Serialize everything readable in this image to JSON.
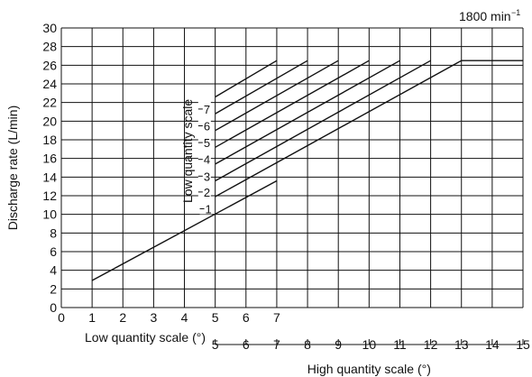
{
  "chart_data": {
    "type": "line",
    "speed_label": "1800 min",
    "speed_exponent": "−1",
    "ylabel": "Discharge rate (L/min)",
    "ylim": [
      0,
      30
    ],
    "yticks": [
      "0",
      "2",
      "4",
      "6",
      "8",
      "10",
      "12",
      "14",
      "16",
      "18",
      "20",
      "22",
      "24",
      "26",
      "28",
      "30"
    ],
    "xlim": [
      0,
      15
    ],
    "low_axis_label": "Low quantity scale (°)",
    "low_axis_ticks": [
      "0",
      "1",
      "2",
      "3",
      "4",
      "5",
      "6",
      "7"
    ],
    "high_axis_label": "High quantity scale (°)",
    "high_axis_ticks": [
      "5",
      "6",
      "7",
      "8",
      "9",
      "10",
      "11",
      "12",
      "13",
      "14",
      "15"
    ],
    "inner_axis_label": "Low quantity scale",
    "grid": true,
    "series": [
      {
        "name": "1",
        "points": [
          [
            1,
            2.9
          ],
          [
            7,
            13.6
          ]
        ]
      },
      {
        "name": "2",
        "points": [
          [
            5,
            11.9
          ],
          [
            13,
            26.5
          ],
          [
            15,
            26.5
          ]
        ]
      },
      {
        "name": "3",
        "points": [
          [
            5,
            13.6
          ],
          [
            12,
            26.5
          ]
        ]
      },
      {
        "name": "4",
        "points": [
          [
            5,
            15.4
          ],
          [
            11,
            26.5
          ]
        ]
      },
      {
        "name": "5",
        "points": [
          [
            5,
            17.2
          ],
          [
            10,
            26.5
          ]
        ]
      },
      {
        "name": "6",
        "points": [
          [
            5,
            19.0
          ],
          [
            9,
            26.5
          ]
        ]
      },
      {
        "name": "7",
        "points": [
          [
            5,
            20.8
          ],
          [
            8,
            26.5
          ]
        ]
      },
      {
        "name": "",
        "points": [
          [
            5,
            22.6
          ],
          [
            7,
            26.5
          ]
        ]
      }
    ],
    "series_labels": [
      {
        "text": "1",
        "x": 4.85,
        "y": 10.6
      },
      {
        "text": "2",
        "x": 4.8,
        "y": 12.4
      },
      {
        "text": "3",
        "x": 4.8,
        "y": 14.1
      },
      {
        "text": "4",
        "x": 4.8,
        "y": 15.9
      },
      {
        "text": "5",
        "x": 4.8,
        "y": 17.7
      },
      {
        "text": "6",
        "x": 4.8,
        "y": 19.5
      },
      {
        "text": "7",
        "x": 4.8,
        "y": 21.3
      }
    ]
  }
}
